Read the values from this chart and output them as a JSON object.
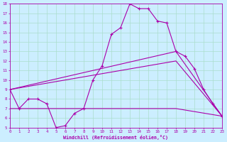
{
  "xlabel": "Windchill (Refroidissement éolien,°C)",
  "bg_color": "#cceeff",
  "grid_color": "#aaddcc",
  "line_color": "#aa00aa",
  "xmin": 0,
  "xmax": 23,
  "ymin": 5,
  "ymax": 18,
  "series": [
    [
      0,
      9.0
    ],
    [
      1,
      7.0
    ],
    [
      2,
      8.0
    ],
    [
      3,
      8.0
    ],
    [
      4,
      7.5
    ],
    [
      5,
      5.0
    ],
    [
      6,
      5.2
    ],
    [
      7,
      6.5
    ],
    [
      8,
      7.0
    ],
    [
      9,
      10.0
    ],
    [
      10,
      11.5
    ],
    [
      11,
      14.8
    ],
    [
      12,
      15.5
    ],
    [
      13,
      18.0
    ],
    [
      14,
      17.5
    ],
    [
      15,
      17.5
    ],
    [
      16,
      16.2
    ],
    [
      17,
      16.0
    ],
    [
      18,
      13.0
    ],
    [
      19,
      12.5
    ],
    [
      20,
      11.2
    ],
    [
      21,
      9.0
    ],
    [
      22,
      7.5
    ],
    [
      23,
      6.2
    ]
  ],
  "line_a": [
    [
      0,
      9.0
    ],
    [
      18,
      13.0
    ],
    [
      23,
      6.2
    ]
  ],
  "line_b": [
    [
      0,
      9.0
    ],
    [
      18,
      12.0
    ],
    [
      23,
      6.2
    ]
  ],
  "line_c": [
    [
      0,
      7.0
    ],
    [
      9,
      7.0
    ],
    [
      18,
      7.0
    ],
    [
      23,
      6.2
    ]
  ]
}
